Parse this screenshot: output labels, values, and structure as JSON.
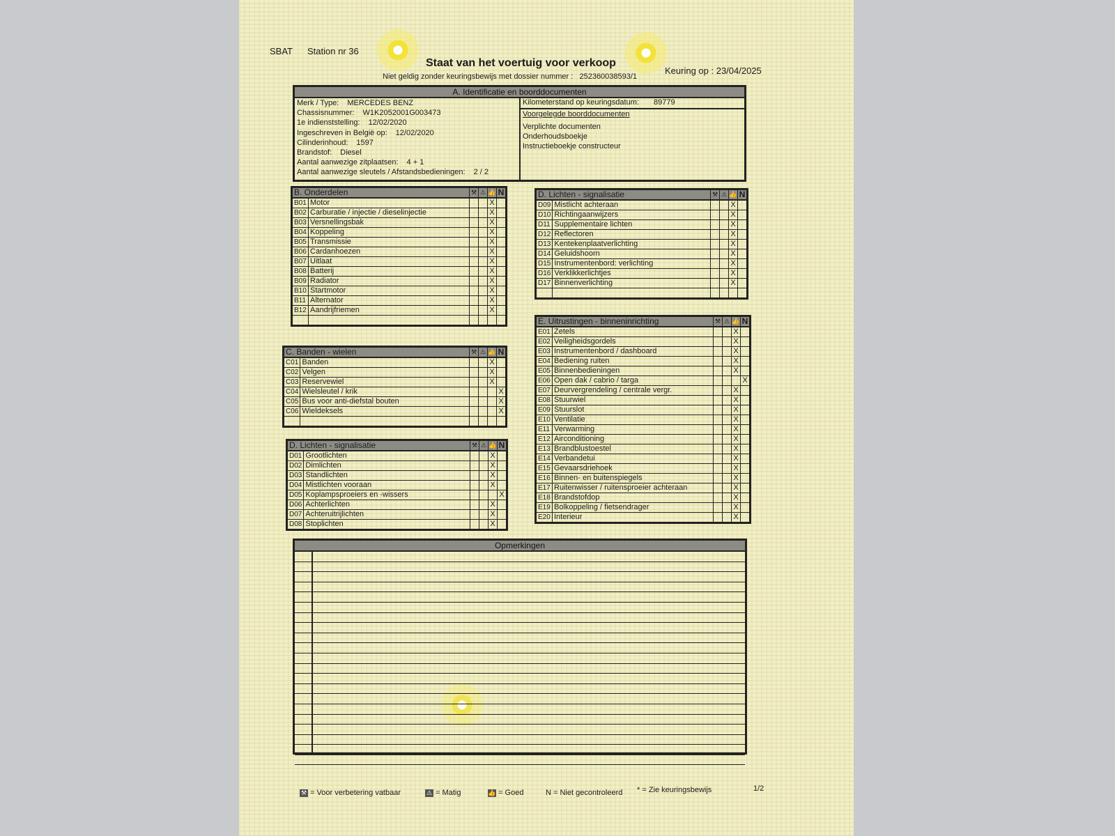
{
  "header": {
    "org": "SBAT",
    "station": "Station nr 36",
    "title": "Staat van het voertuig voor verkoop",
    "subtitle": "Niet geldig zonder keuringsbewijs met dossier nummer :",
    "dossier": "252360038593/1",
    "inspection_date": "Keuring op : 23/04/2025"
  },
  "section_a": {
    "title": "A. Identificatie en boorddocumenten",
    "fields": [
      {
        "label": "Merk / Type:",
        "value": "MERCEDES BENZ"
      },
      {
        "label": "Chassisnummer:",
        "value": "W1K2052001G003473"
      },
      {
        "label": "1e indienststelling:",
        "value": "12/02/2020"
      },
      {
        "label": "Ingeschreven in België op:",
        "value": "12/02/2020"
      },
      {
        "label": "Cilinderinhoud:",
        "value": "1597"
      },
      {
        "label": "Brandstof:",
        "value": "Diesel"
      },
      {
        "label": "Aantal aanwezige zitplaatsen:",
        "value": "4 + 1"
      },
      {
        "label": "Aantal aanwezige sleutels / Afstandsbedieningen:",
        "value": "2 / 2"
      }
    ],
    "odometer_label": "Kilometerstand op keuringsdatum:",
    "odometer_value": "89779",
    "docs_title": "Voorgelegde boorddocumenten",
    "docs": [
      "Verplichte documenten",
      "Onderhoudsboekje",
      "Instructieboekje constructeur"
    ]
  },
  "mark_columns": [
    "repair",
    "warning",
    "good",
    "not_checked"
  ],
  "mark_symbol": "X",
  "n_label": "N",
  "sections": [
    {
      "id": "b",
      "title": "B. Onderdelen",
      "blank_rows": 1,
      "items": [
        {
          "code": "B01",
          "label": "Motor",
          "mark": "good"
        },
        {
          "code": "B02",
          "label": "Carburatie / injectie / dieselinjectie",
          "mark": "good"
        },
        {
          "code": "B03",
          "label": "Versnellingsbak",
          "mark": "good"
        },
        {
          "code": "B04",
          "label": "Koppeling",
          "mark": "good"
        },
        {
          "code": "B05",
          "label": "Transmissie",
          "mark": "good"
        },
        {
          "code": "B06",
          "label": "Cardanhoezen",
          "mark": "good"
        },
        {
          "code": "B07",
          "label": "Uitlaat",
          "mark": "good"
        },
        {
          "code": "B08",
          "label": "Batterij",
          "mark": "good"
        },
        {
          "code": "B09",
          "label": "Radiator",
          "mark": "good"
        },
        {
          "code": "B10",
          "label": "Startmotor",
          "mark": "good"
        },
        {
          "code": "B11",
          "label": "Alternator",
          "mark": "good"
        },
        {
          "code": "B12",
          "label": "Aandrijfriemen",
          "mark": "good"
        }
      ]
    },
    {
      "id": "c",
      "title": "C. Banden - wielen",
      "blank_rows": 1,
      "items": [
        {
          "code": "C01",
          "label": "Banden",
          "mark": "good"
        },
        {
          "code": "C02",
          "label": "Velgen",
          "mark": "good"
        },
        {
          "code": "C03",
          "label": "Reservewiel",
          "mark": "good"
        },
        {
          "code": "C04",
          "label": "Wielsleutel / krik",
          "mark": "not_checked"
        },
        {
          "code": "C05",
          "label": "Bus voor anti-diefstal bouten",
          "mark": "not_checked"
        },
        {
          "code": "C06",
          "label": "Wieldeksels",
          "mark": "not_checked"
        }
      ]
    },
    {
      "id": "d1",
      "title": "D. Lichten - signalisatie",
      "blank_rows": 0,
      "items": [
        {
          "code": "D01",
          "label": "Grootlichten",
          "mark": "good"
        },
        {
          "code": "D02",
          "label": "Dimlichten",
          "mark": "good"
        },
        {
          "code": "D03",
          "label": "Standlichten",
          "mark": "good"
        },
        {
          "code": "D04",
          "label": "Mistlichten vooraan",
          "mark": "good"
        },
        {
          "code": "D05",
          "label": "Koplampsproeiers en -wissers",
          "mark": "not_checked"
        },
        {
          "code": "D06",
          "label": "Achterlichten",
          "mark": "good"
        },
        {
          "code": "D07",
          "label": "Achteruitrijlichten",
          "mark": "good"
        },
        {
          "code": "D08",
          "label": "Stoplichten",
          "mark": "good"
        }
      ]
    },
    {
      "id": "d2",
      "title": "D. Lichten - signalisatie",
      "blank_rows": 1,
      "items": [
        {
          "code": "D09",
          "label": "Mistlicht achteraan",
          "mark": "good"
        },
        {
          "code": "D10",
          "label": "Richtingaanwijzers",
          "mark": "good"
        },
        {
          "code": "D11",
          "label": "Supplementaire lichten",
          "mark": "good"
        },
        {
          "code": "D12",
          "label": "Reflectoren",
          "mark": "good"
        },
        {
          "code": "D13",
          "label": "Kentekenplaatverlichting",
          "mark": "good"
        },
        {
          "code": "D14",
          "label": "Geluidshoorn",
          "mark": "good"
        },
        {
          "code": "D15",
          "label": "Instrumentenbord: verlichting",
          "mark": "good"
        },
        {
          "code": "D16",
          "label": "Verklikkerlichtjes",
          "mark": "good"
        },
        {
          "code": "D17",
          "label": "Binnenverlichting",
          "mark": "good"
        }
      ]
    },
    {
      "id": "e",
      "title": "E. Uitrustingen - binneninrichting",
      "blank_rows": 0,
      "items": [
        {
          "code": "E01",
          "label": "Zetels",
          "mark": "good"
        },
        {
          "code": "E02",
          "label": "Veiligheidsgordels",
          "mark": "good"
        },
        {
          "code": "E03",
          "label": "Instrumentenbord / dashboard",
          "mark": "good"
        },
        {
          "code": "E04",
          "label": "Bediening ruiten",
          "mark": "good"
        },
        {
          "code": "E05",
          "label": "Binnenbedieningen",
          "mark": "good"
        },
        {
          "code": "E06",
          "label": "Open dak / cabrio / targa",
          "mark": "not_checked"
        },
        {
          "code": "E07",
          "label": "Deurvergrendeling / centrale vergr.",
          "mark": "good"
        },
        {
          "code": "E08",
          "label": "Stuurwiel",
          "mark": "good"
        },
        {
          "code": "E09",
          "label": "Stuurslot",
          "mark": "good"
        },
        {
          "code": "E10",
          "label": "Ventilatie",
          "mark": "good"
        },
        {
          "code": "E11",
          "label": "Verwarming",
          "mark": "good"
        },
        {
          "code": "E12",
          "label": "Airconditioning",
          "mark": "good"
        },
        {
          "code": "E13",
          "label": "Brandblustoestel",
          "mark": "good"
        },
        {
          "code": "E14",
          "label": "Verbandetui",
          "mark": "good"
        },
        {
          "code": "E15",
          "label": "Gevaarsdriehoek",
          "mark": "good"
        },
        {
          "code": "E16",
          "label": "Binnen- en buitenspiegels",
          "mark": "good"
        },
        {
          "code": "E17",
          "label": "Ruitenwisser / ruitensproeier achteraan",
          "mark": "good"
        },
        {
          "code": "E18",
          "label": "Brandstofdop",
          "mark": "good"
        },
        {
          "code": "E19",
          "label": "Bolkoppeling / fietsendrager",
          "mark": "good"
        },
        {
          "code": "E20",
          "label": "Interieur",
          "mark": "good"
        }
      ]
    }
  ],
  "remarks": {
    "title": "Opmerkingen"
  },
  "legend": {
    "repair": "= Voor verbetering vatbaar",
    "warning": "= Matig",
    "good": "= Goed",
    "not_checked": "N = Niet gecontroleerd",
    "see_certificate": "* = Zie keuringsbewijs",
    "page": "1/2"
  }
}
